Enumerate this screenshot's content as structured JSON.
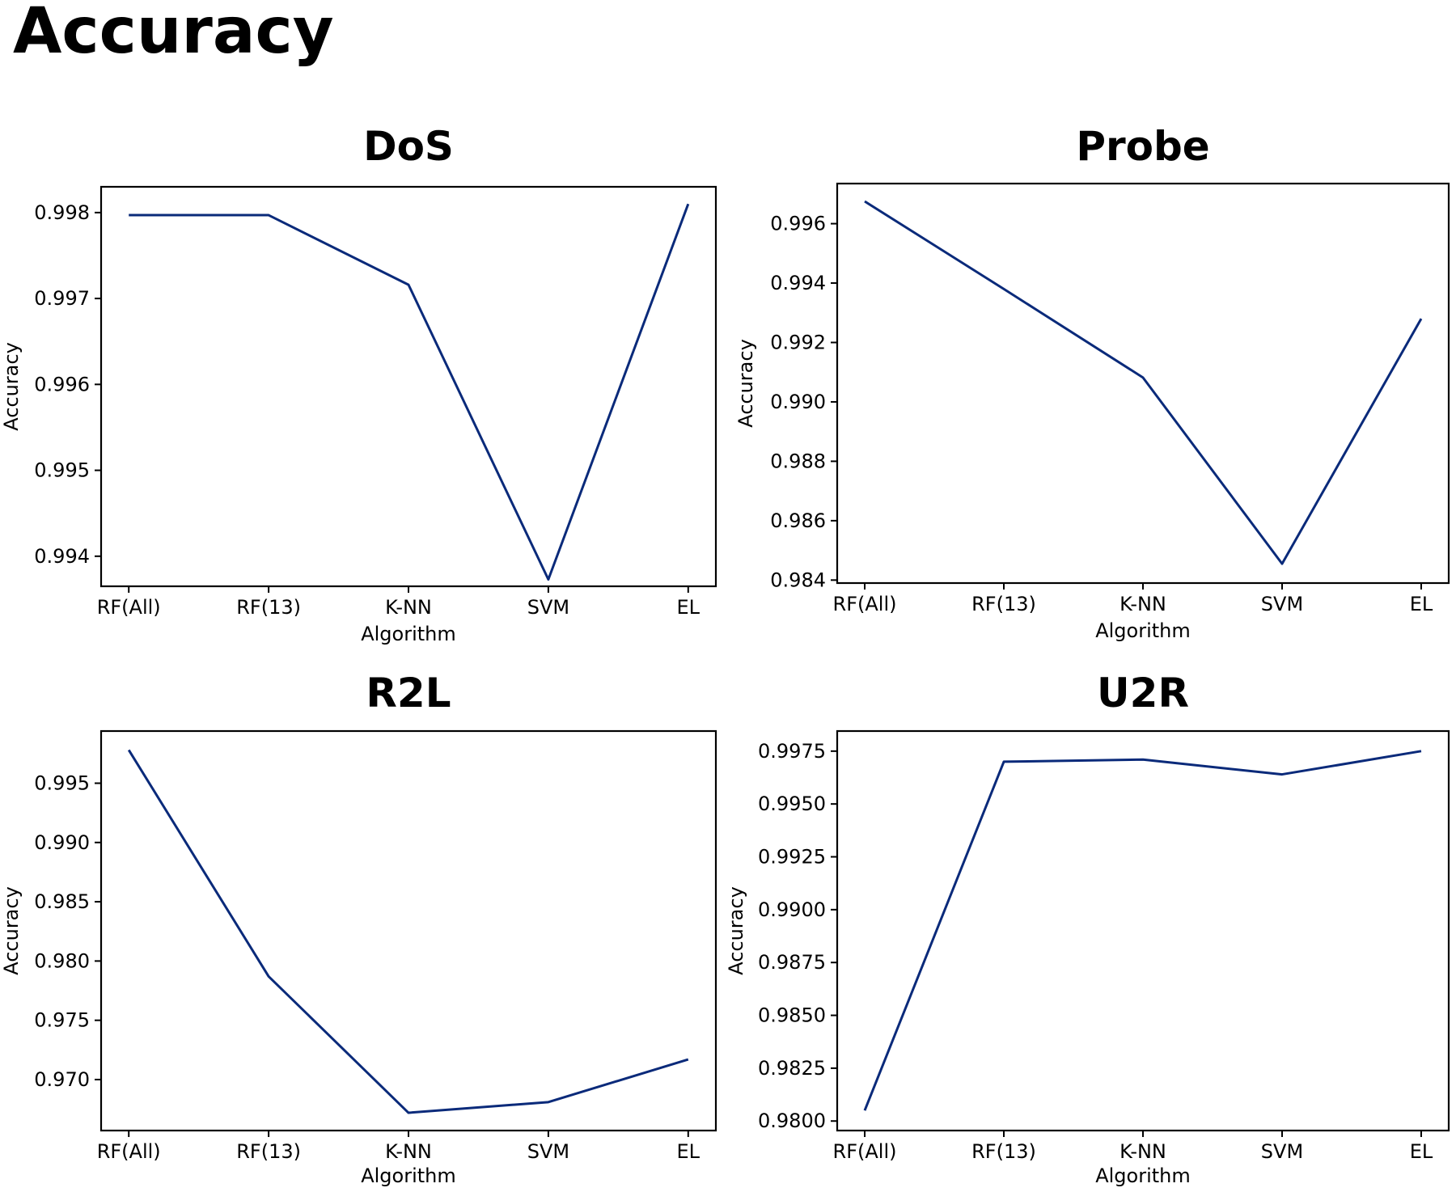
{
  "title": "Accuracy",
  "colors": {
    "line": "#0a2a7a"
  },
  "chart_data": [
    {
      "type": "line",
      "title": "DoS",
      "xlabel": "Algorithm",
      "ylabel": "Accuracy",
      "categories": [
        "RF(All)",
        "RF(13)",
        "K-NN",
        "SVM",
        "EL"
      ],
      "values": [
        0.99797,
        0.99797,
        0.99716,
        0.99373,
        0.9981
      ],
      "ylim": [
        0.99365,
        0.9983
      ],
      "yticks": [
        0.994,
        0.995,
        0.996,
        0.997,
        0.998
      ],
      "ytick_labels": [
        "0.994",
        "0.995",
        "0.996",
        "0.997",
        "0.998"
      ],
      "grid": false
    },
    {
      "type": "line",
      "title": "Probe",
      "xlabel": "Algorithm",
      "ylabel": "Accuracy",
      "categories": [
        "RF(All)",
        "RF(13)",
        "K-NN",
        "SVM",
        "EL"
      ],
      "values": [
        0.99675,
        0.9938,
        0.99082,
        0.98455,
        0.9928
      ],
      "ylim": [
        0.9839,
        0.99735
      ],
      "yticks": [
        0.984,
        0.986,
        0.988,
        0.99,
        0.992,
        0.994,
        0.996
      ],
      "ytick_labels": [
        "0.984",
        "0.986",
        "0.988",
        "0.990",
        "0.992",
        "0.994",
        "0.996"
      ],
      "grid": false
    },
    {
      "type": "line",
      "title": "R2L",
      "xlabel": "Algorithm",
      "ylabel": "Accuracy",
      "categories": [
        "RF(All)",
        "RF(13)",
        "K-NN",
        "SVM",
        "EL"
      ],
      "values": [
        0.9978,
        0.9787,
        0.9672,
        0.9681,
        0.9717
      ],
      "ylim": [
        0.9657,
        0.9994
      ],
      "yticks": [
        0.97,
        0.975,
        0.98,
        0.985,
        0.99,
        0.995
      ],
      "ytick_labels": [
        "0.970",
        "0.975",
        "0.980",
        "0.985",
        "0.990",
        "0.995"
      ],
      "grid": false
    },
    {
      "type": "line",
      "title": "U2R",
      "xlabel": "Algorithm",
      "ylabel": "Accuracy",
      "categories": [
        "RF(All)",
        "RF(13)",
        "K-NN",
        "SVM",
        "EL"
      ],
      "values": [
        0.9805,
        0.997,
        0.9971,
        0.9964,
        0.9975
      ],
      "ylim": [
        0.97955,
        0.99845
      ],
      "yticks": [
        0.98,
        0.9825,
        0.985,
        0.9875,
        0.99,
        0.9925,
        0.995,
        0.9975
      ],
      "ytick_labels": [
        "0.9800",
        "0.9825",
        "0.9850",
        "0.9875",
        "0.9900",
        "0.9925",
        "0.9950",
        "0.9975"
      ],
      "grid": false
    }
  ]
}
